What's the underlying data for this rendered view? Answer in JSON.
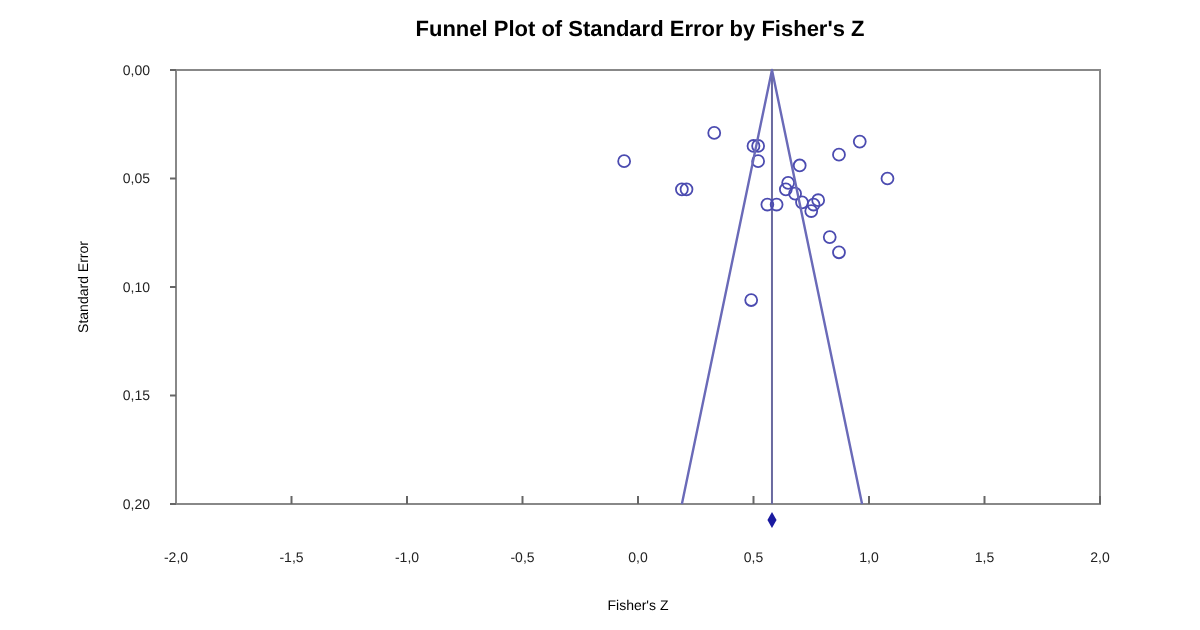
{
  "chart_data": {
    "type": "scatter",
    "title": "Funnel Plot of Standard Error by Fisher's Z",
    "xlabel": "Fisher's Z",
    "ylabel": "Standard Error",
    "xlim": [
      -2.0,
      2.0
    ],
    "xticks": [
      {
        "value": -2.0,
        "label": "-2,0"
      },
      {
        "value": -1.5,
        "label": "-1,5"
      },
      {
        "value": -1.0,
        "label": "-1,0"
      },
      {
        "value": -0.5,
        "label": "-0,5"
      },
      {
        "value": 0.0,
        "label": "0,0"
      },
      {
        "value": 0.5,
        "label": "0,5"
      },
      {
        "value": 1.0,
        "label": "1,0"
      },
      {
        "value": 1.5,
        "label": "1,5"
      },
      {
        "value": 2.0,
        "label": "2,0"
      }
    ],
    "ylim": [
      0.2,
      0.0
    ],
    "yticks": [
      {
        "value": 0.0,
        "label": "0,00"
      },
      {
        "value": 0.05,
        "label": "0,05"
      },
      {
        "value": 0.1,
        "label": "0,10"
      },
      {
        "value": 0.15,
        "label": "0,15"
      },
      {
        "value": 0.2,
        "label": "0,20"
      }
    ],
    "grid": false,
    "marker": "circle",
    "series": [
      {
        "color": "#4b4bb0",
        "x": [
          -0.06,
          0.33,
          0.19,
          0.21,
          0.5,
          0.52,
          0.52,
          0.49,
          0.56,
          0.6,
          0.7,
          0.65,
          0.64,
          0.68,
          0.71,
          0.75,
          0.78,
          0.76,
          0.83,
          0.87,
          0.87,
          0.96,
          1.08
        ],
        "values": [
          0.042,
          0.029,
          0.055,
          0.055,
          0.035,
          0.035,
          0.042,
          0.106,
          0.062,
          0.062,
          0.044,
          0.052,
          0.055,
          0.057,
          0.061,
          0.065,
          0.06,
          0.062,
          0.077,
          0.084,
          0.039,
          0.033,
          0.05
        ]
      },
      {
        "type": "line",
        "marker": "none",
        "color": "#6a6ab8",
        "x": [
          0.19,
          0.58,
          0.97
        ],
        "values": [
          0.2,
          0.0,
          0.2
        ]
      }
    ],
    "ref_lines": [
      {
        "axis": "x",
        "value": 0.58,
        "label": null,
        "color": "#6a6aa0"
      }
    ]
  }
}
